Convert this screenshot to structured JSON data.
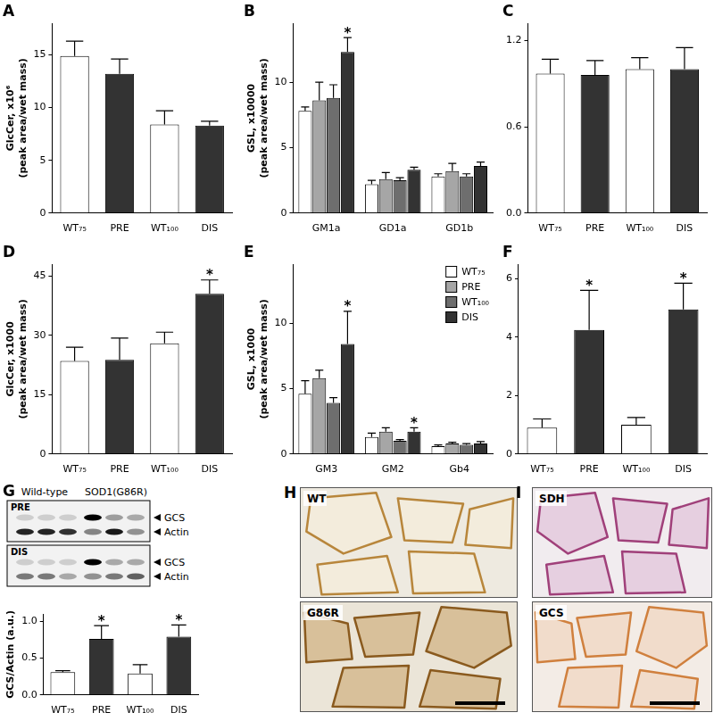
{
  "chart_data": [
    {
      "panel": "A",
      "type": "bar",
      "categories": [
        "WT₇₅",
        "PRE",
        "WT₁₀₀",
        "DIS"
      ],
      "values": [
        14.9,
        13.2,
        8.4,
        8.3
      ],
      "errors": [
        1.4,
        1.4,
        1.3,
        0.4
      ],
      "colors": [
        "#ffffff",
        "#333333",
        "#ffffff",
        "#333333"
      ],
      "ylabel": [
        "GlcCer, x10⁶",
        "(peak area/wet mass)"
      ],
      "ylim": [
        0,
        18
      ],
      "yticks": [
        0,
        5,
        10,
        15
      ],
      "grid": false
    },
    {
      "panel": "B",
      "type": "bar",
      "categories": [
        "GM1a",
        "GD1a",
        "GD1b"
      ],
      "series": [
        {
          "name": "WT₇₅",
          "color": "#ffffff",
          "values": [
            7.8,
            2.2,
            2.8
          ],
          "errors": [
            0.3,
            0.3,
            0.2
          ]
        },
        {
          "name": "PRE",
          "color": "#a6a6a6",
          "values": [
            8.6,
            2.6,
            3.2
          ],
          "errors": [
            1.4,
            0.5,
            0.6
          ]
        },
        {
          "name": "WT₁₀₀",
          "color": "#6e6e6e",
          "values": [
            8.8,
            2.5,
            2.8
          ],
          "errors": [
            1.0,
            0.2,
            0.2
          ]
        },
        {
          "name": "DIS",
          "color": "#333333",
          "values": [
            12.3,
            3.3,
            3.6
          ],
          "errors": [
            1.1,
            0.2,
            0.3
          ],
          "significance": [
            "*",
            null,
            null
          ]
        }
      ],
      "ylabel": [
        "GSL, x10000",
        "(peak area/wet mass)"
      ],
      "ylim": [
        0,
        14.5
      ],
      "yticks": [
        0,
        5,
        10
      ],
      "grid": false
    },
    {
      "panel": "C",
      "type": "bar",
      "categories": [
        "WT₇₅",
        "PRE",
        "WT₁₀₀",
        "DIS"
      ],
      "values": [
        0.97,
        0.96,
        1.0,
        1.0
      ],
      "errors": [
        0.1,
        0.1,
        0.08,
        0.15
      ],
      "colors": [
        "#ffffff",
        "#333333",
        "#ffffff",
        "#333333"
      ],
      "ylim": [
        0,
        1.32
      ],
      "yticks": [
        {
          "value": 0,
          "label": "0.0"
        },
        0.6,
        1.2
      ],
      "grid": false
    },
    {
      "panel": "D",
      "type": "bar",
      "categories": [
        "WT₇₅",
        "PRE",
        "WT₁₀₀",
        "DIS"
      ],
      "values": [
        23.5,
        23.8,
        28.0,
        40.5
      ],
      "errors": [
        3.5,
        5.5,
        2.8,
        3.5
      ],
      "significance": [
        null,
        null,
        null,
        "*"
      ],
      "colors": [
        "#ffffff",
        "#333333",
        "#ffffff",
        "#333333"
      ],
      "ylabel": [
        "GlcCer, x1000",
        "(peak area/wet mass)"
      ],
      "ylim": [
        0,
        48
      ],
      "yticks": [
        0,
        15,
        30,
        45
      ],
      "grid": false
    },
    {
      "panel": "E",
      "type": "bar",
      "categories": [
        "GM3",
        "GM2",
        "Gb4"
      ],
      "series": [
        {
          "name": "WT₇₅",
          "color": "#ffffff",
          "values": [
            4.6,
            1.3,
            0.6
          ],
          "errors": [
            1.0,
            0.3,
            0.1
          ]
        },
        {
          "name": "PRE",
          "color": "#a6a6a6",
          "values": [
            5.8,
            1.7,
            0.8
          ],
          "errors": [
            0.6,
            0.3,
            0.1
          ]
        },
        {
          "name": "WT₁₀₀",
          "color": "#6e6e6e",
          "values": [
            3.9,
            1.0,
            0.7
          ],
          "errors": [
            0.4,
            0.1,
            0.1
          ]
        },
        {
          "name": "DIS",
          "color": "#333333",
          "values": [
            8.4,
            1.7,
            0.8
          ],
          "errors": [
            2.5,
            0.3,
            0.15
          ],
          "significance": [
            "*",
            "*",
            null
          ]
        }
      ],
      "ylabel": [
        "GSL, x1000",
        "(peak area/wet mass)"
      ],
      "ylim": [
        0,
        14.5
      ],
      "yticks": [
        0,
        5,
        10
      ],
      "grid": false,
      "legend": "upper right"
    },
    {
      "panel": "F",
      "type": "bar",
      "categories": [
        "WT₇₅",
        "PRE",
        "WT₁₀₀",
        "DIS"
      ],
      "values": [
        0.9,
        4.25,
        1.0,
        4.95
      ],
      "errors": [
        0.3,
        1.35,
        0.25,
        0.9
      ],
      "significance": [
        null,
        "*",
        null,
        "*"
      ],
      "colors": [
        "#ffffff",
        "#333333",
        "#ffffff",
        "#333333"
      ],
      "ylim": [
        0,
        6.5
      ],
      "yticks": [
        0,
        2,
        4,
        6
      ],
      "grid": false
    },
    {
      "type": "bar",
      "categories": [
        "WT₇₅",
        "PRE",
        "WT₁₀₀",
        "DIS"
      ],
      "values": [
        0.31,
        0.76,
        0.29,
        0.79
      ],
      "errors": [
        0.02,
        0.18,
        0.12,
        0.16
      ],
      "significance": [
        null,
        "*",
        null,
        "*"
      ],
      "colors": [
        "#ffffff",
        "#333333",
        "#ffffff",
        "#333333"
      ],
      "ylabel": [
        "GCS/Actin (a.u.)"
      ],
      "ylim": [
        0,
        1.1
      ],
      "yticks": [
        {
          "value": 0,
          "label": "0.0"
        },
        0.5,
        {
          "value": 1,
          "label": "1.0"
        }
      ],
      "grid": false
    }
  ],
  "blot": {
    "panel": "G",
    "groups": [
      "Wild-type",
      "SOD1(G86R)"
    ],
    "blocks": [
      {
        "label": "PRE",
        "bands": [
          "GCS",
          "Actin"
        ]
      },
      {
        "label": "DIS",
        "bands": [
          "GCS",
          "Actin"
        ]
      }
    ]
  },
  "micrographs": [
    {
      "panel": "H",
      "images": [
        "WT",
        "G86R"
      ]
    },
    {
      "panel": "I",
      "images": [
        "SDH",
        "GCS"
      ]
    }
  ]
}
